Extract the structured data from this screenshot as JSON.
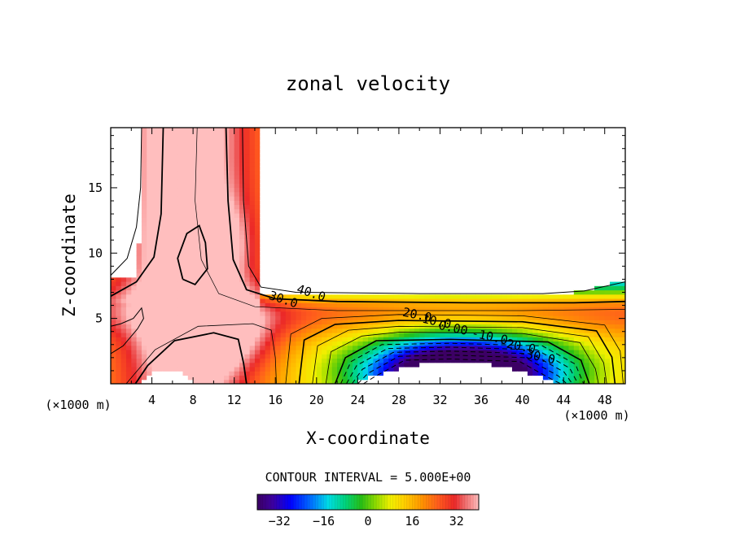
{
  "chart_data": {
    "type": "contour",
    "title": "zonal velocity",
    "xlabel": "X-coordinate",
    "ylabel": "Z-coordinate",
    "x_unit_left": "(×1000 m)",
    "x_unit_right": "(×1000 m)",
    "xlim": [
      0,
      50
    ],
    "ylim": [
      0,
      19.6
    ],
    "x_ticks": [
      4,
      8,
      12,
      16,
      20,
      24,
      28,
      32,
      36,
      40,
      44,
      48
    ],
    "x_tick_labels": [
      "4",
      "8",
      "12",
      "16",
      "20",
      "24",
      "28",
      "32",
      "36",
      "40",
      "44",
      "48"
    ],
    "y_ticks": [
      5,
      10,
      15
    ],
    "y_tick_labels": [
      "5",
      "10",
      "15"
    ],
    "contour_interval_text": "CONTOUR INTERVAL = 5.000E+00",
    "value_range": [
      -40,
      40
    ],
    "contour_labels": [
      {
        "text": "40.0",
        "x": 18.0,
        "z": 7.0
      },
      {
        "text": "30.0",
        "x": 15.3,
        "z": 6.5
      },
      {
        "text": "20.0",
        "x": 28.3,
        "z": 5.2
      },
      {
        "text": "10.0",
        "x": 30.2,
        "z": 4.7
      },
      {
        "text": "0.00",
        "x": 31.8,
        "z": 4.2
      },
      {
        "text": "-10.0",
        "x": 35.0,
        "z": 3.6
      },
      {
        "text": "-20.0",
        "x": 37.7,
        "z": 2.9
      },
      {
        "text": "-30.0",
        "x": 39.6,
        "z": 2.1
      }
    ],
    "colorbar": {
      "min": -40,
      "max": 40,
      "ticks": [
        -32,
        -16,
        0,
        16,
        32
      ],
      "tick_labels": [
        "−32",
        "−16",
        "0",
        "16",
        "32"
      ]
    }
  }
}
